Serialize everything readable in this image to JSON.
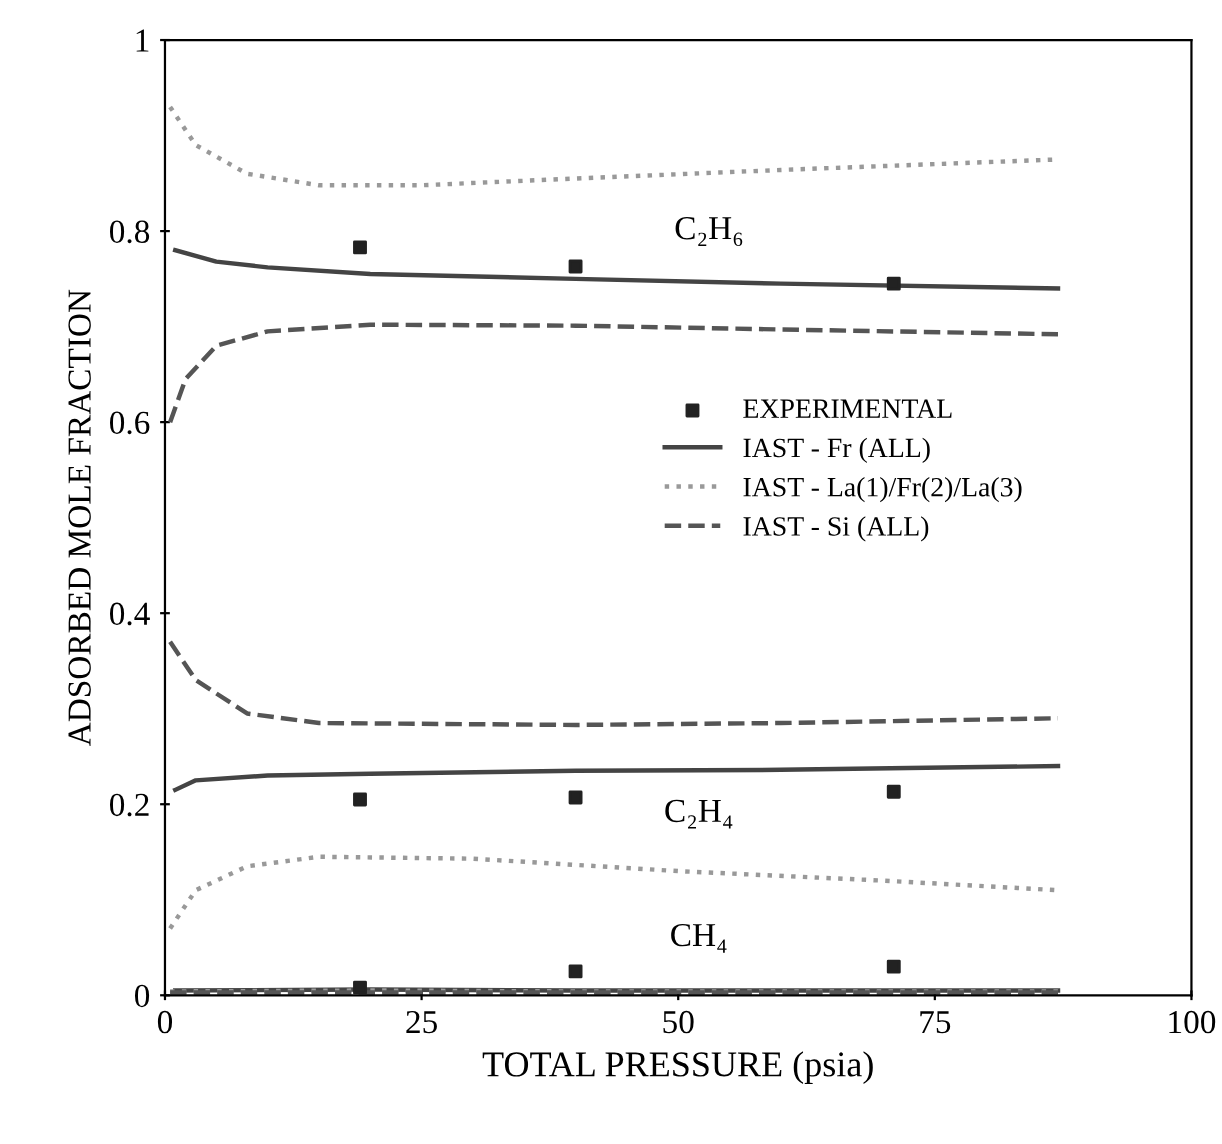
{
  "chart_data": {
    "type": "line",
    "xlabel": "TOTAL PRESSURE (psia)",
    "ylabel": "ADSORBED MOLE FRACTION",
    "xlim": [
      0,
      100
    ],
    "xticks": [
      0,
      25,
      50,
      75,
      100
    ],
    "ylim": [
      0,
      1
    ],
    "yticks": [
      0,
      0.2,
      0.4,
      0.6,
      0.8,
      1
    ],
    "grid": false,
    "legend": "center right",
    "series": [
      {
        "name": "EXPERIMENTAL",
        "type": "scatter",
        "marker": "square",
        "color": "#222222",
        "x": [
          19,
          40,
          71,
          19,
          40,
          71,
          19,
          40,
          71
        ],
        "values": [
          0.783,
          0.763,
          0.745,
          0.205,
          0.207,
          0.213,
          0.008,
          0.025,
          0.03
        ]
      },
      {
        "name": "IAST - Fr (ALL)",
        "line_style": "solid",
        "color": "#444444",
        "x": [
          1,
          5,
          10,
          20,
          40,
          60,
          87
        ],
        "values": [
          0.78,
          0.768,
          0.762,
          0.755,
          0.75,
          0.745,
          0.74
        ]
      },
      {
        "line_style": "solid",
        "color": "#444444",
        "x": [
          1,
          3,
          10,
          20,
          40,
          60,
          87
        ],
        "values": [
          0.215,
          0.225,
          0.23,
          0.232,
          0.235,
          0.236,
          0.24
        ]
      },
      {
        "line_style": "solid",
        "color": "#444444",
        "x": [
          1,
          20,
          40,
          60,
          87
        ],
        "values": [
          0.005,
          0.006,
          0.005,
          0.005,
          0.005
        ]
      },
      {
        "name": "IAST - La(1)/Fr(2)/La(3)",
        "line_style": "dotted",
        "color": "#999999",
        "x": [
          0.5,
          3,
          8,
          15,
          25,
          40,
          60,
          87
        ],
        "values": [
          0.93,
          0.89,
          0.86,
          0.848,
          0.848,
          0.855,
          0.864,
          0.875
        ]
      },
      {
        "line_style": "dotted",
        "color": "#999999",
        "x": [
          0.5,
          3,
          8,
          15,
          30,
          50,
          70,
          87
        ],
        "values": [
          0.07,
          0.11,
          0.135,
          0.145,
          0.143,
          0.13,
          0.12,
          0.11
        ]
      },
      {
        "line_style": "dotted",
        "color": "#999999",
        "x": [
          0.5,
          20,
          40,
          60,
          87
        ],
        "values": [
          0.004,
          0.005,
          0.004,
          0.004,
          0.004
        ]
      },
      {
        "name": "IAST - Si (ALL)",
        "line_style": "dashed",
        "color": "#555555",
        "x": [
          0.5,
          2,
          5,
          10,
          20,
          40,
          60,
          87
        ],
        "values": [
          0.6,
          0.645,
          0.68,
          0.695,
          0.702,
          0.701,
          0.697,
          0.692
        ]
      },
      {
        "line_style": "dashed",
        "color": "#555555",
        "x": [
          0.5,
          3,
          8,
          15,
          40,
          60,
          87
        ],
        "values": [
          0.37,
          0.33,
          0.295,
          0.285,
          0.283,
          0.285,
          0.29
        ]
      },
      {
        "line_style": "dashed",
        "color": "#555555",
        "x": [
          0.5,
          20,
          40,
          60,
          87
        ],
        "values": [
          0.003,
          0.003,
          0.003,
          0.003,
          0.003
        ]
      }
    ],
    "annotations": [
      "C₂H₆",
      "C₂H₄",
      "CH₄"
    ]
  }
}
